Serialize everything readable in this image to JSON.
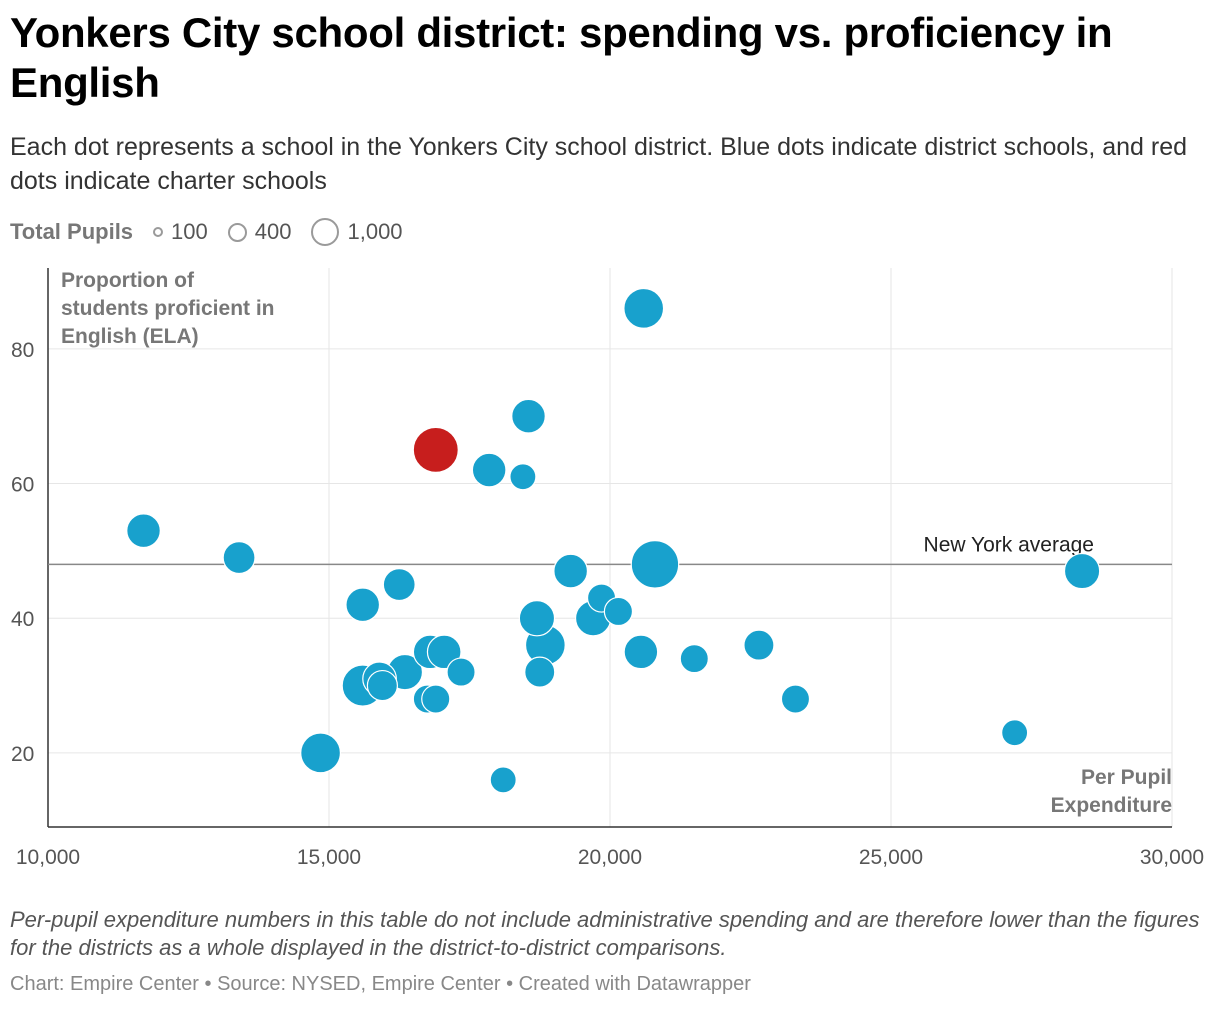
{
  "title": "Yonkers City school district: spending vs. proficiency in English",
  "subtitle": "Each dot represents a school in the Yonkers City school district. Blue dots indicate district schools, and red dots indicate charter schools",
  "size_legend": {
    "label": "Total Pupils",
    "items": [
      {
        "value": 100,
        "label": "100"
      },
      {
        "value": 400,
        "label": "400"
      },
      {
        "value": 1000,
        "label": "1,000"
      }
    ]
  },
  "footnote": "Per-pupil expenditure numbers in this table do not include administrative spending and are therefore lower than the figures for the districts as a whole displayed in the district-to-district comparisons.",
  "credits": "Chart: Empire Center • Source: NYSED, Empire Center • Created with Datawrapper",
  "colors": {
    "district": "#18a1cd",
    "charter": "#c71e1d",
    "grid": "#e6e6e6",
    "axis": "#333333",
    "reference_line": "#888888"
  },
  "chart_data": {
    "type": "scatter",
    "title": "Yonkers City school district: spending vs. proficiency in English",
    "xlabel": "Per Pupil Expenditure",
    "ylabel": "Proportion of students proficient in English (ELA)",
    "xlim": [
      10000,
      30000
    ],
    "ylim": [
      9,
      92
    ],
    "xticks": [
      10000,
      15000,
      20000,
      25000,
      30000
    ],
    "xtick_labels": [
      "10,000",
      "15,000",
      "20,000",
      "25,000",
      "30,000"
    ],
    "yticks": [
      20,
      40,
      60,
      80
    ],
    "ytick_labels": [
      "20",
      "40",
      "60",
      "80"
    ],
    "grid": true,
    "reference_line": {
      "y": 48,
      "label": "New York average"
    },
    "series": [
      {
        "name": "District schools",
        "color": "#18a1cd",
        "points": [
          {
            "x": 20600,
            "y": 86,
            "pupils": 700
          },
          {
            "x": 18550,
            "y": 70,
            "pupils": 500
          },
          {
            "x": 17850,
            "y": 62,
            "pupils": 500
          },
          {
            "x": 18450,
            "y": 61,
            "pupils": 300
          },
          {
            "x": 11700,
            "y": 53,
            "pupils": 500
          },
          {
            "x": 13400,
            "y": 49,
            "pupils": 450
          },
          {
            "x": 20800,
            "y": 48,
            "pupils": 1000
          },
          {
            "x": 19300,
            "y": 47,
            "pupils": 500
          },
          {
            "x": 28400,
            "y": 47,
            "pupils": 550
          },
          {
            "x": 16250,
            "y": 45,
            "pupils": 450
          },
          {
            "x": 19850,
            "y": 43,
            "pupils": 350
          },
          {
            "x": 15600,
            "y": 42,
            "pupils": 500
          },
          {
            "x": 20150,
            "y": 41,
            "pupils": 350
          },
          {
            "x": 18700,
            "y": 40,
            "pupils": 550
          },
          {
            "x": 19700,
            "y": 40,
            "pupils": 550
          },
          {
            "x": 18850,
            "y": 36,
            "pupils": 700
          },
          {
            "x": 22650,
            "y": 36,
            "pupils": 400
          },
          {
            "x": 16800,
            "y": 35,
            "pupils": 500
          },
          {
            "x": 17050,
            "y": 35,
            "pupils": 500
          },
          {
            "x": 20550,
            "y": 35,
            "pupils": 500
          },
          {
            "x": 21500,
            "y": 34,
            "pupils": 350
          },
          {
            "x": 16350,
            "y": 32,
            "pupils": 550
          },
          {
            "x": 17350,
            "y": 32,
            "pupils": 350
          },
          {
            "x": 18750,
            "y": 32,
            "pupils": 400
          },
          {
            "x": 15900,
            "y": 31,
            "pupils": 500
          },
          {
            "x": 15600,
            "y": 30,
            "pupils": 750
          },
          {
            "x": 15950,
            "y": 30,
            "pupils": 400
          },
          {
            "x": 16750,
            "y": 28,
            "pupils": 350
          },
          {
            "x": 16900,
            "y": 28,
            "pupils": 350
          },
          {
            "x": 23300,
            "y": 28,
            "pupils": 350
          },
          {
            "x": 27200,
            "y": 23,
            "pupils": 300
          },
          {
            "x": 14850,
            "y": 20,
            "pupils": 700
          },
          {
            "x": 18100,
            "y": 16,
            "pupils": 300
          }
        ]
      },
      {
        "name": "Charter schools",
        "color": "#c71e1d",
        "points": [
          {
            "x": 16900,
            "y": 65,
            "pupils": 900
          }
        ]
      }
    ]
  }
}
